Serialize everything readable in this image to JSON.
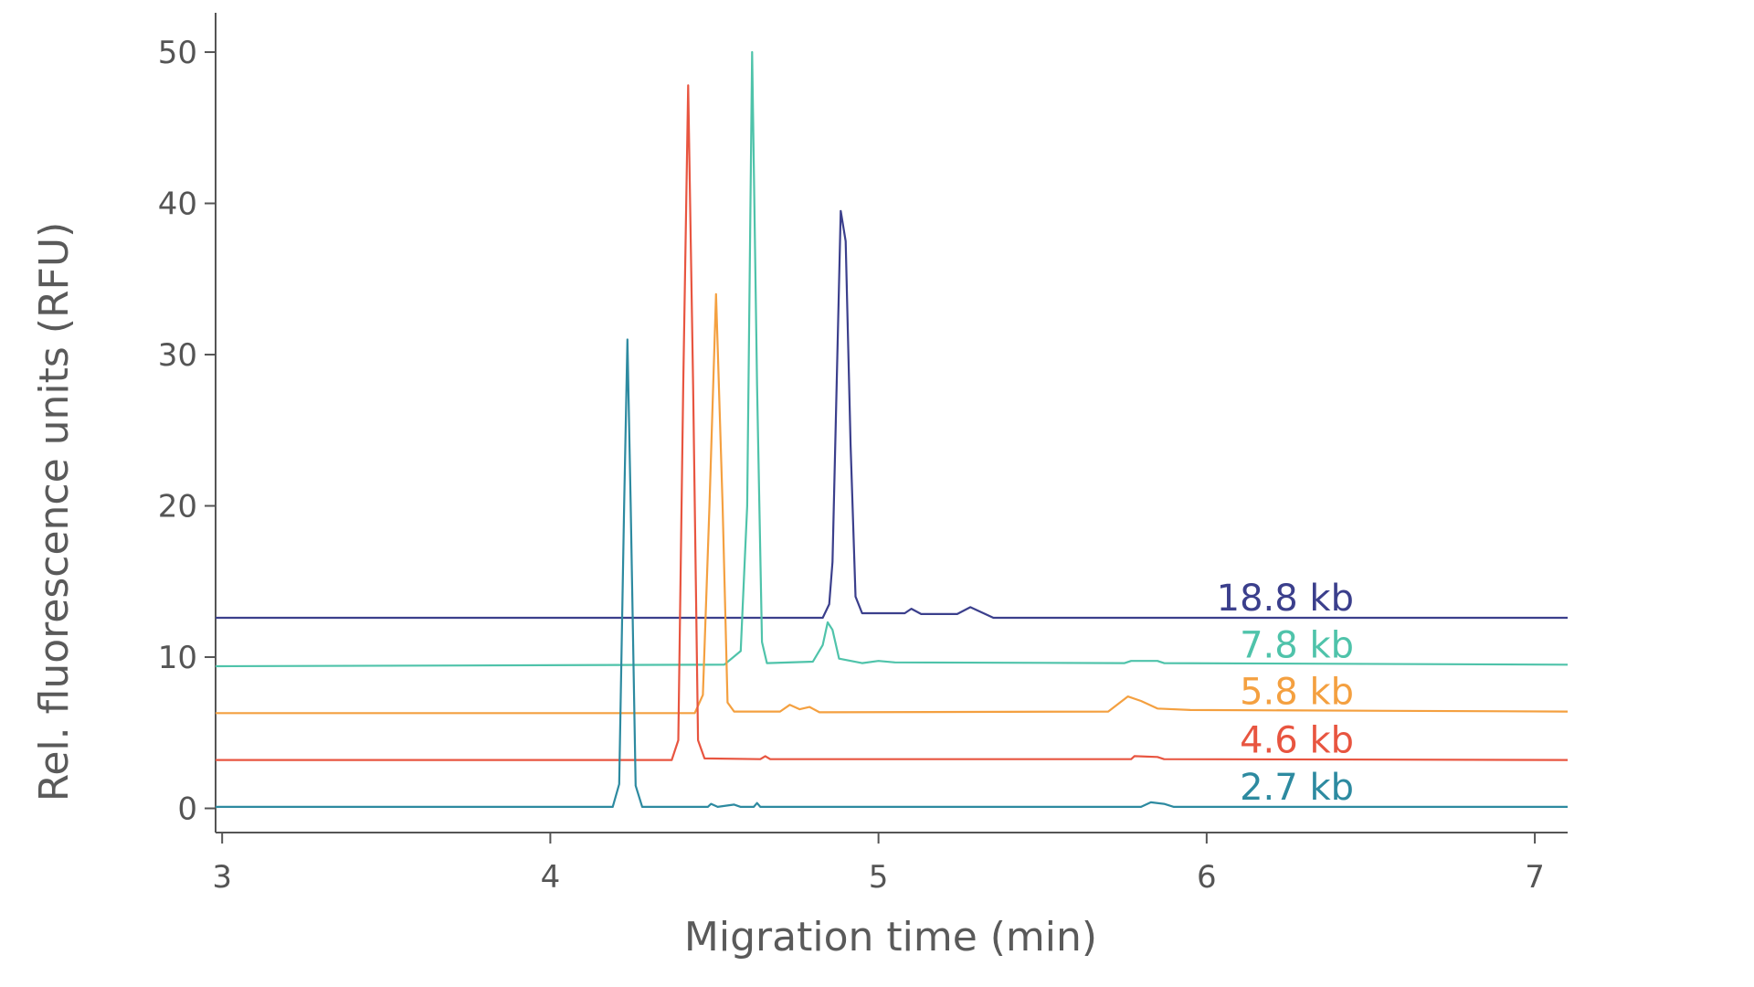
{
  "chart_data": {
    "type": "line",
    "title": "",
    "xlabel": "Migration time (min)",
    "ylabel": "Rel. fluorescence units (RFU)",
    "xlim": [
      2.98,
      7.1
    ],
    "ylim": [
      -1.6,
      52.6
    ],
    "xticks": [
      "3",
      "4",
      "5",
      "6",
      "7"
    ],
    "yticks": [
      "0",
      "10",
      "20",
      "30",
      "40",
      "50"
    ],
    "grid": false,
    "legend": "inline labels at right end of each trace",
    "series": [
      {
        "name": "18.8 kb",
        "color": "#3b3f8c",
        "points": [
          [
            2.98,
            12.6
          ],
          [
            4.83,
            12.6
          ],
          [
            4.85,
            13.5
          ],
          [
            4.86,
            16.3
          ],
          [
            4.885,
            39.5
          ],
          [
            4.9,
            37.5
          ],
          [
            4.915,
            24
          ],
          [
            4.93,
            14
          ],
          [
            4.95,
            12.9
          ],
          [
            5.08,
            12.9
          ],
          [
            5.1,
            13.2
          ],
          [
            5.13,
            12.85
          ],
          [
            5.24,
            12.85
          ],
          [
            5.28,
            13.3
          ],
          [
            5.35,
            12.6
          ],
          [
            7.1,
            12.6
          ]
        ]
      },
      {
        "name": "7.8 kb",
        "color": "#4fc3aa",
        "points": [
          [
            2.98,
            9.4
          ],
          [
            4.53,
            9.5
          ],
          [
            4.58,
            10.4
          ],
          [
            4.6,
            20
          ],
          [
            4.615,
            50
          ],
          [
            4.63,
            28
          ],
          [
            4.645,
            11
          ],
          [
            4.66,
            9.6
          ],
          [
            4.8,
            9.7
          ],
          [
            4.83,
            10.8
          ],
          [
            4.845,
            12.3
          ],
          [
            4.86,
            11.8
          ],
          [
            4.88,
            9.9
          ],
          [
            4.95,
            9.6
          ],
          [
            5.0,
            9.75
          ],
          [
            5.05,
            9.65
          ],
          [
            5.75,
            9.6
          ],
          [
            5.77,
            9.75
          ],
          [
            5.85,
            9.75
          ],
          [
            5.87,
            9.6
          ],
          [
            7.1,
            9.5
          ]
        ]
      },
      {
        "name": "5.8 kb",
        "color": "#f4a040",
        "points": [
          [
            2.98,
            6.3
          ],
          [
            4.44,
            6.3
          ],
          [
            4.465,
            7.5
          ],
          [
            4.485,
            20
          ],
          [
            4.505,
            34
          ],
          [
            4.525,
            20
          ],
          [
            4.54,
            7
          ],
          [
            4.56,
            6.4
          ],
          [
            4.7,
            6.4
          ],
          [
            4.73,
            6.85
          ],
          [
            4.76,
            6.55
          ],
          [
            4.79,
            6.7
          ],
          [
            4.82,
            6.35
          ],
          [
            5.7,
            6.4
          ],
          [
            5.76,
            7.4
          ],
          [
            5.8,
            7.1
          ],
          [
            5.85,
            6.6
          ],
          [
            5.95,
            6.5
          ],
          [
            7.1,
            6.4
          ]
        ]
      },
      {
        "name": "4.6 kb",
        "color": "#e85540",
        "points": [
          [
            2.98,
            3.2
          ],
          [
            4.37,
            3.2
          ],
          [
            4.39,
            4.5
          ],
          [
            4.405,
            28
          ],
          [
            4.42,
            47.8
          ],
          [
            4.435,
            28
          ],
          [
            4.45,
            4.5
          ],
          [
            4.47,
            3.3
          ],
          [
            4.64,
            3.25
          ],
          [
            4.655,
            3.45
          ],
          [
            4.67,
            3.25
          ],
          [
            5.77,
            3.25
          ],
          [
            5.78,
            3.45
          ],
          [
            5.85,
            3.4
          ],
          [
            5.87,
            3.25
          ],
          [
            7.1,
            3.2
          ]
        ]
      },
      {
        "name": "2.7 kb",
        "color": "#2d8aa0",
        "points": [
          [
            2.98,
            0.1
          ],
          [
            4.19,
            0.1
          ],
          [
            4.21,
            1.6
          ],
          [
            4.225,
            20
          ],
          [
            4.235,
            31
          ],
          [
            4.245,
            20
          ],
          [
            4.26,
            1.5
          ],
          [
            4.28,
            0.1
          ],
          [
            4.48,
            0.1
          ],
          [
            4.49,
            0.3
          ],
          [
            4.51,
            0.1
          ],
          [
            4.56,
            0.25
          ],
          [
            4.58,
            0.1
          ],
          [
            4.62,
            0.1
          ],
          [
            4.63,
            0.35
          ],
          [
            4.64,
            0.1
          ],
          [
            5.8,
            0.1
          ],
          [
            5.83,
            0.4
          ],
          [
            5.87,
            0.3
          ],
          [
            5.9,
            0.1
          ],
          [
            7.1,
            0.1
          ]
        ]
      }
    ]
  }
}
